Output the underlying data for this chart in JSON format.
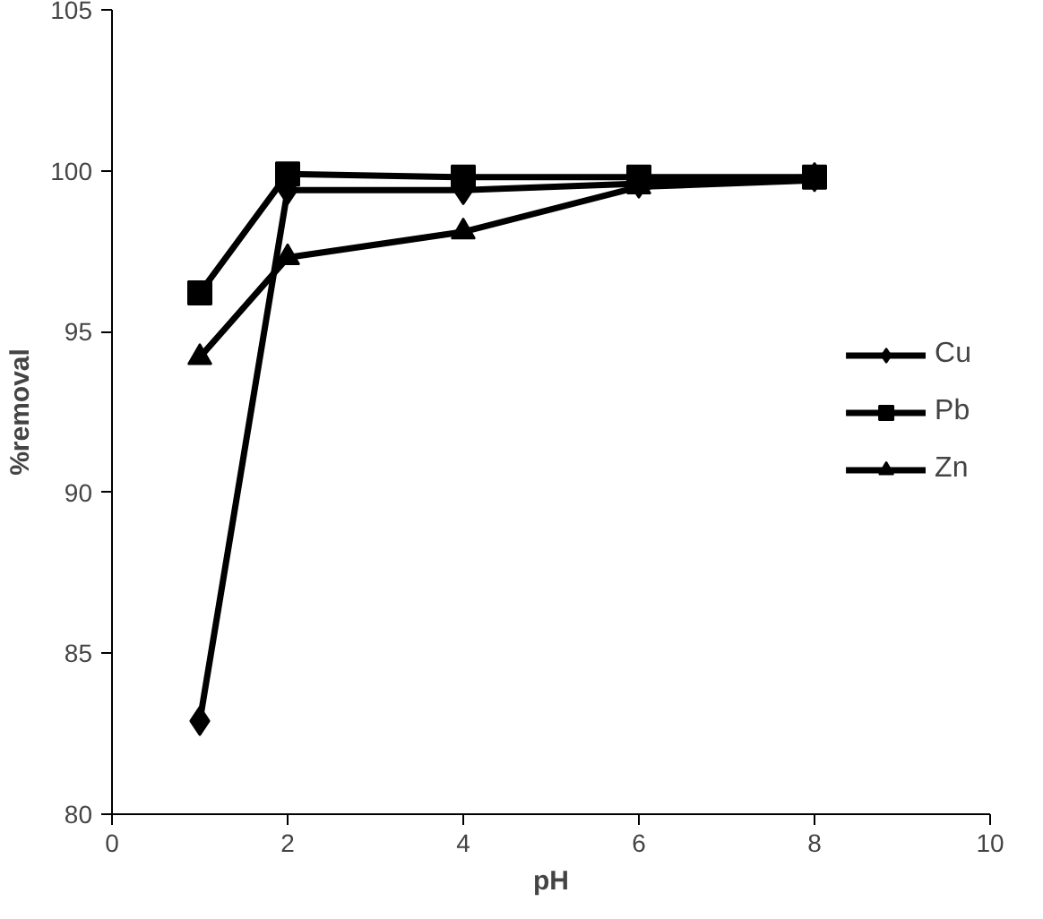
{
  "chart_data": {
    "type": "line",
    "xlabel": "pH",
    "ylabel": "%removal",
    "x": [
      1,
      2,
      4,
      6,
      8
    ],
    "series": [
      {
        "name": "Cu",
        "color": "#000000",
        "marker": "diamond",
        "values": [
          82.9,
          99.4,
          99.4,
          99.6,
          99.8
        ]
      },
      {
        "name": "Pb",
        "color": "#000000",
        "marker": "square",
        "values": [
          96.2,
          99.9,
          99.8,
          99.8,
          99.8
        ]
      },
      {
        "name": "Zn",
        "color": "#000000",
        "marker": "triangle",
        "values": [
          94.2,
          97.3,
          98.1,
          99.5,
          99.7
        ]
      }
    ],
    "xlim": [
      0,
      10
    ],
    "xticks": [
      0,
      2,
      4,
      6,
      8,
      10
    ],
    "ylim": [
      80,
      105
    ],
    "yticks": [
      80,
      85,
      90,
      95,
      100,
      105
    ],
    "grid": false,
    "legend": "right",
    "line_style": "solid"
  }
}
